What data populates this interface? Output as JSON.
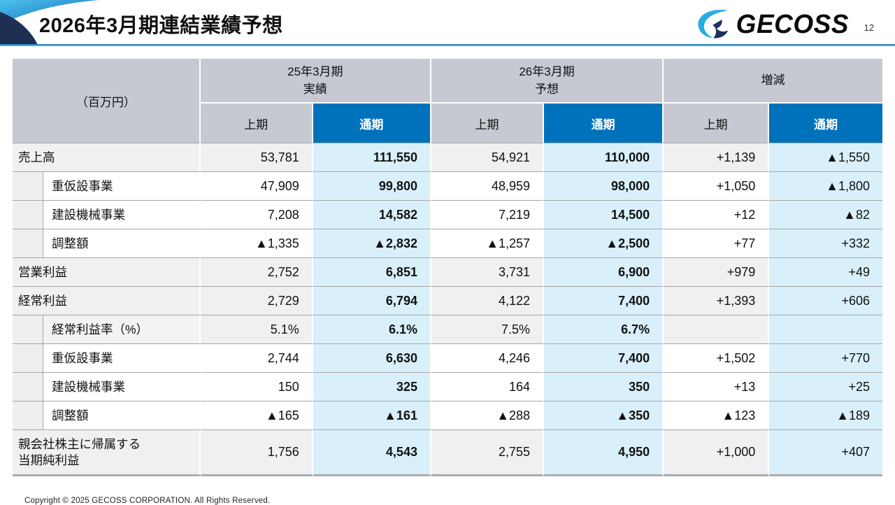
{
  "page": {
    "title": "2026年3月期連結業績予想",
    "page_number": "12",
    "footer": "Copyright © 2025 GECOSS CORPORATION. All Rights Reserved."
  },
  "logo": {
    "text": "GECOSS"
  },
  "colors": {
    "accent_blue": "#0072bc",
    "header_gray": "#c6c9d1",
    "highlight_light_blue": "#d9f0fb",
    "row_gray": "#f0f0f0",
    "border_gray": "#a6a6a6",
    "logo_light_blue": "#29abe2",
    "logo_navy": "#1c2f5e"
  },
  "table": {
    "unit_label": "（百万円）",
    "column_groups": [
      {
        "line1": "25年3月期",
        "line2": "実績"
      },
      {
        "line1": "26年3月期",
        "line2": "予想"
      },
      {
        "line1": "増減",
        "line2": ""
      }
    ],
    "subheaders": {
      "first_half": "上期",
      "full_year": "通期"
    },
    "rows": [
      {
        "label": "売上高",
        "label2": "",
        "indent": false,
        "shaded": true,
        "tall": false,
        "values": [
          "53,781",
          "111,550",
          "54,921",
          "110,000",
          "+1,139",
          "▲1,550"
        ]
      },
      {
        "label": "重仮設事業",
        "label2": "",
        "indent": true,
        "shaded": false,
        "tall": false,
        "values": [
          "47,909",
          "99,800",
          "48,959",
          "98,000",
          "+1,050",
          "▲1,800"
        ]
      },
      {
        "label": "建設機械事業",
        "label2": "",
        "indent": true,
        "shaded": false,
        "tall": false,
        "values": [
          "7,208",
          "14,582",
          "7,219",
          "14,500",
          "+12",
          "▲82"
        ]
      },
      {
        "label": "調整額",
        "label2": "",
        "indent": true,
        "shaded": false,
        "tall": false,
        "values": [
          "▲1,335",
          "▲2,832",
          "▲1,257",
          "▲2,500",
          "+77",
          "+332"
        ]
      },
      {
        "label": "営業利益",
        "label2": "",
        "indent": false,
        "shaded": true,
        "tall": false,
        "values": [
          "2,752",
          "6,851",
          "3,731",
          "6,900",
          "+979",
          "+49"
        ]
      },
      {
        "label": "経常利益",
        "label2": "",
        "indent": false,
        "shaded": true,
        "tall": false,
        "values": [
          "2,729",
          "6,794",
          "4,122",
          "7,400",
          "+1,393",
          "+606"
        ]
      },
      {
        "label": "経常利益率（%）",
        "label2": "",
        "indent": true,
        "shaded": true,
        "tall": false,
        "values": [
          "5.1%",
          "6.1%",
          "7.5%",
          "6.7%",
          "",
          ""
        ]
      },
      {
        "label": "重仮設事業",
        "label2": "",
        "indent": true,
        "shaded": false,
        "tall": false,
        "values": [
          "2,744",
          "6,630",
          "4,246",
          "7,400",
          "+1,502",
          "+770"
        ]
      },
      {
        "label": "建設機械事業",
        "label2": "",
        "indent": true,
        "shaded": false,
        "tall": false,
        "values": [
          "150",
          "325",
          "164",
          "350",
          "+13",
          "+25"
        ]
      },
      {
        "label": "調整額",
        "label2": "",
        "indent": true,
        "shaded": false,
        "tall": false,
        "values": [
          "▲165",
          "▲161",
          "▲288",
          "▲350",
          "▲123",
          "▲189"
        ]
      },
      {
        "label": "親会社株主に帰属する",
        "label2": "当期純利益",
        "indent": false,
        "shaded": true,
        "tall": true,
        "values": [
          "1,756",
          "4,543",
          "2,755",
          "4,950",
          "+1,000",
          "+407"
        ]
      }
    ]
  }
}
